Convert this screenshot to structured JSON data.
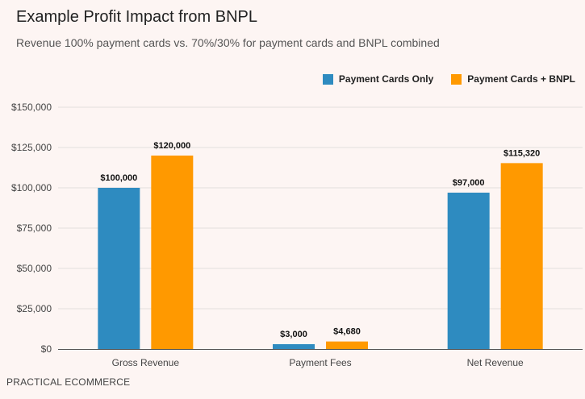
{
  "header": {
    "title": "Example Profit Impact from BNPL",
    "subtitle": "Revenue 100% payment cards vs. 70%/30% for payment cards and BNPL combined"
  },
  "source": "PRACTICAL ECOMMERCE",
  "colors": {
    "payment_cards_only": "#2e8bc0",
    "payment_cards_bnpl": "#ff9900"
  },
  "chart_data": {
    "type": "bar",
    "title": "Example Profit Impact from BNPL",
    "subtitle": "Revenue 100% payment cards vs. 70%/30% for payment cards and BNPL combined",
    "categories": [
      "Gross Revenue",
      "Payment Fees",
      "Net Revenue"
    ],
    "series": [
      {
        "name": "Payment Cards Only",
        "values": [
          100000,
          3000,
          97000
        ],
        "labels": [
          "$100,000",
          "$3,000",
          "$97,000"
        ]
      },
      {
        "name": "Payment Cards + BNPL",
        "values": [
          120000,
          4680,
          115320
        ],
        "labels": [
          "$120,000",
          "$4,680",
          "$115,320"
        ]
      }
    ],
    "ylim": [
      0,
      150000
    ],
    "yticks": [
      0,
      25000,
      50000,
      75000,
      100000,
      125000,
      150000
    ],
    "ytick_labels": [
      "$0",
      "$25,000",
      "$50,000",
      "$75,000",
      "$100,000",
      "$125,000",
      "$150,000"
    ],
    "xlabel": "",
    "ylabel": "",
    "grid": true,
    "legend_position": "top-right"
  }
}
